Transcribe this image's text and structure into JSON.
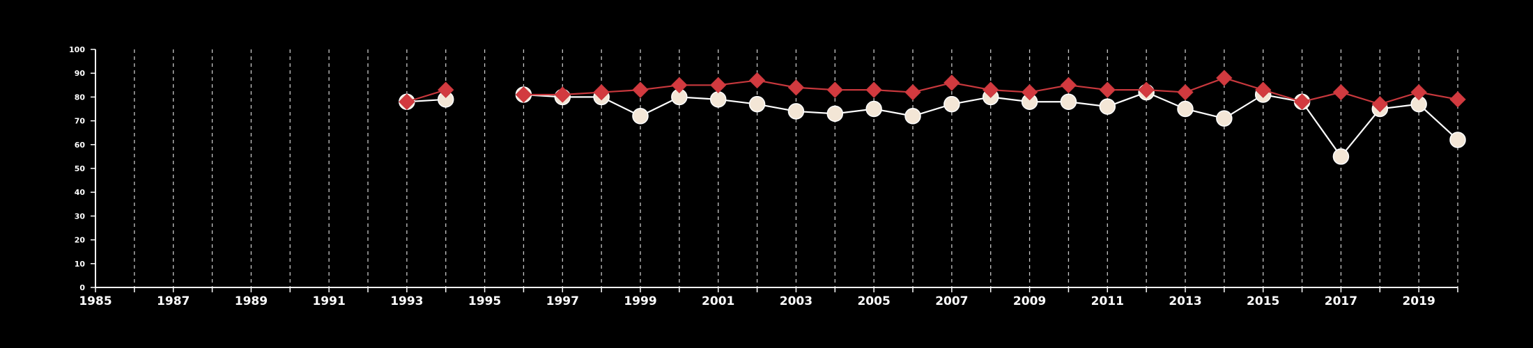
{
  "chart_data": {
    "type": "line",
    "title": "",
    "xlabel": "",
    "ylabel": "",
    "xlim": [
      1985,
      2020
    ],
    "ylim": [
      0,
      100
    ],
    "x_ticks": [
      1985,
      1987,
      1989,
      1991,
      1993,
      1995,
      1997,
      1999,
      2001,
      2003,
      2005,
      2007,
      2009,
      2011,
      2013,
      2015,
      2017,
      2019
    ],
    "y_ticks": [
      0,
      10,
      20,
      30,
      40,
      50,
      60,
      70,
      80,
      90,
      100
    ],
    "vertical_grid_years": [
      1986,
      1987,
      1988,
      1989,
      1990,
      1991,
      1992,
      1993,
      1994,
      1995,
      1996,
      1997,
      1998,
      1999,
      2000,
      2001,
      2002,
      2003,
      2004,
      2005,
      2006,
      2007,
      2008,
      2009,
      2010,
      2011,
      2012,
      2013,
      2014,
      2015,
      2016,
      2017,
      2018,
      2019,
      2020
    ],
    "grid": "vertical dashed",
    "legend": "none",
    "background": "#000000",
    "series": [
      {
        "marker": "circle",
        "color": "#ffffff",
        "marker_fill": "#f3e6d6",
        "points": [
          {
            "x": 1993,
            "y": 78
          },
          {
            "x": 1994,
            "y": 79
          },
          {
            "x": 1996,
            "y": 81
          },
          {
            "x": 1997,
            "y": 80
          },
          {
            "x": 1998,
            "y": 80
          },
          {
            "x": 1999,
            "y": 72
          },
          {
            "x": 2000,
            "y": 80
          },
          {
            "x": 2001,
            "y": 79
          },
          {
            "x": 2002,
            "y": 77
          },
          {
            "x": 2003,
            "y": 74
          },
          {
            "x": 2004,
            "y": 73
          },
          {
            "x": 2005,
            "y": 75
          },
          {
            "x": 2006,
            "y": 72
          },
          {
            "x": 2007,
            "y": 77
          },
          {
            "x": 2008,
            "y": 80
          },
          {
            "x": 2009,
            "y": 78
          },
          {
            "x": 2010,
            "y": 78
          },
          {
            "x": 2011,
            "y": 76
          },
          {
            "x": 2012,
            "y": 82
          },
          {
            "x": 2013,
            "y": 75
          },
          {
            "x": 2014,
            "y": 71
          },
          {
            "x": 2015,
            "y": 81
          },
          {
            "x": 2016,
            "y": 78
          },
          {
            "x": 2017,
            "y": 55
          },
          {
            "x": 2018,
            "y": 75
          },
          {
            "x": 2019,
            "y": 77
          },
          {
            "x": 2020,
            "y": 62
          }
        ]
      },
      {
        "marker": "diamond",
        "color": "#c8383d",
        "marker_fill": "#d23a3f",
        "points": [
          {
            "x": 1993,
            "y": 78
          },
          {
            "x": 1994,
            "y": 83
          },
          {
            "x": 1996,
            "y": 81
          },
          {
            "x": 1997,
            "y": 81
          },
          {
            "x": 1998,
            "y": 82
          },
          {
            "x": 1999,
            "y": 83
          },
          {
            "x": 2000,
            "y": 85
          },
          {
            "x": 2001,
            "y": 85
          },
          {
            "x": 2002,
            "y": 87
          },
          {
            "x": 2003,
            "y": 84
          },
          {
            "x": 2004,
            "y": 83
          },
          {
            "x": 2005,
            "y": 83
          },
          {
            "x": 2006,
            "y": 82
          },
          {
            "x": 2007,
            "y": 86
          },
          {
            "x": 2008,
            "y": 83
          },
          {
            "x": 2009,
            "y": 82
          },
          {
            "x": 2010,
            "y": 85
          },
          {
            "x": 2011,
            "y": 83
          },
          {
            "x": 2012,
            "y": 83
          },
          {
            "x": 2013,
            "y": 82
          },
          {
            "x": 2014,
            "y": 88
          },
          {
            "x": 2015,
            "y": 83
          },
          {
            "x": 2016,
            "y": 78
          },
          {
            "x": 2017,
            "y": 82
          },
          {
            "x": 2018,
            "y": 77
          },
          {
            "x": 2019,
            "y": 82
          },
          {
            "x": 2020,
            "y": 79
          }
        ]
      }
    ]
  }
}
